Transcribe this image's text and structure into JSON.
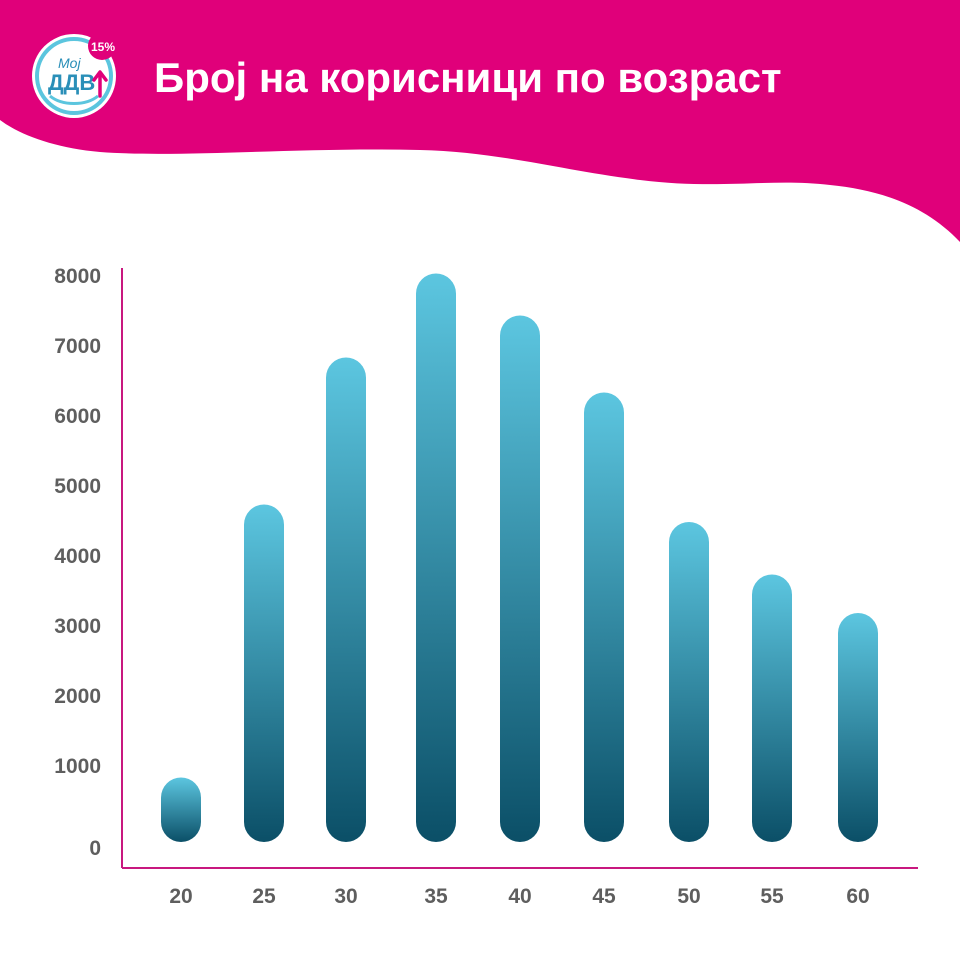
{
  "header": {
    "title": "Број на корисници по возраст",
    "background_color": "#e0007a",
    "logo": {
      "text_top": "Мој",
      "text_main": "ДДВ",
      "badge": "15%",
      "ring_color": "#5bc5de",
      "text_color": "#2a8fb8",
      "badge_color": "#e0007a",
      "icon": "arrow-up-icon"
    }
  },
  "chart_data": {
    "type": "bar",
    "title": "Број на корисници по возраст",
    "xlabel": "",
    "ylabel": "",
    "categories": [
      "20",
      "25",
      "30",
      "35",
      "40",
      "45",
      "50",
      "55",
      "60"
    ],
    "values": [
      750,
      4650,
      6750,
      7950,
      7350,
      6250,
      4400,
      3650,
      3100
    ],
    "ylim": [
      0,
      8000
    ],
    "yticks": [
      0,
      1000,
      2000,
      3000,
      4000,
      5000,
      6000,
      7000,
      8000
    ],
    "grid": false,
    "legend": "none",
    "axis_color": "#c8187f",
    "bar_gradient_top": "#5cc6e0",
    "bar_gradient_bottom": "#0b4f67",
    "tick_label_color": "#5e5e5e"
  }
}
